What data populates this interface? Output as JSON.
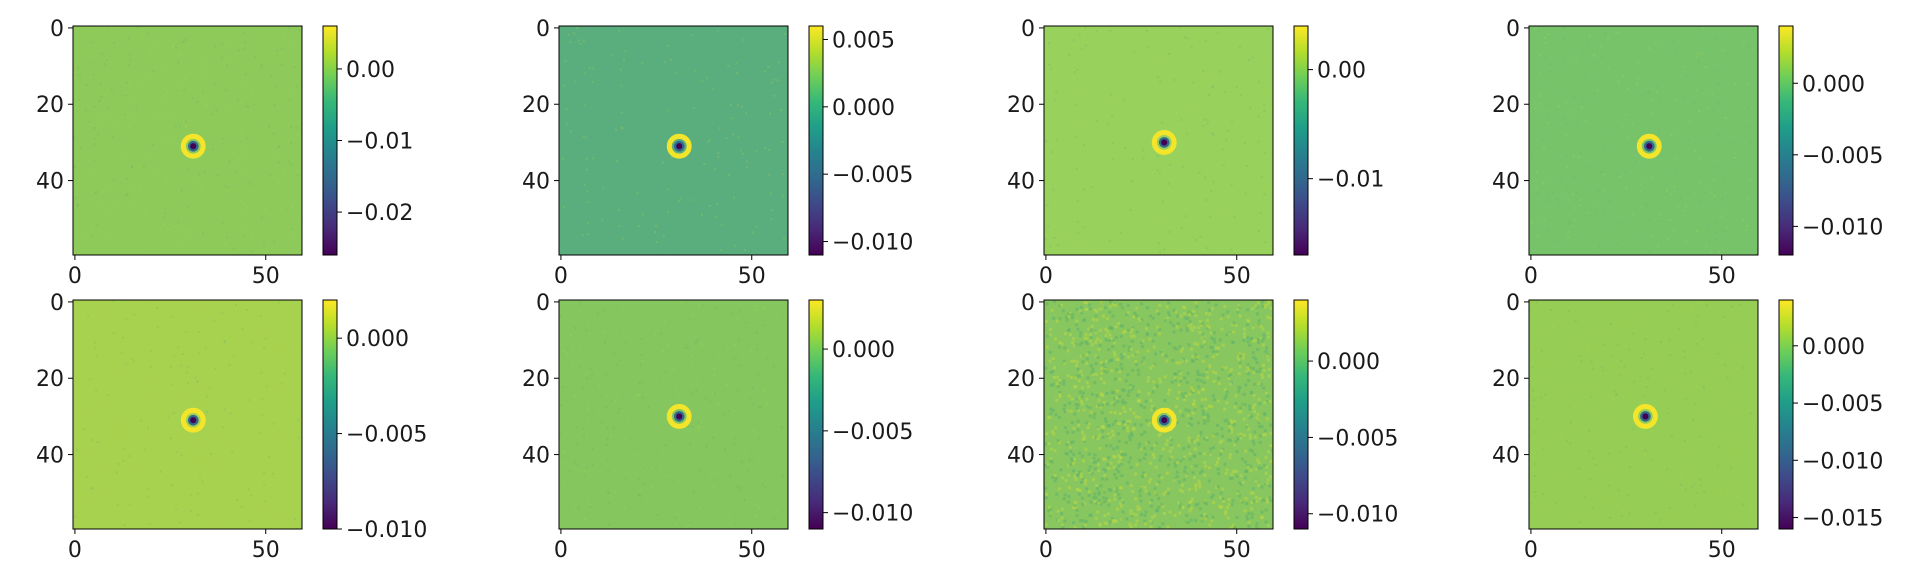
{
  "chart_data": [
    {
      "type": "heatmap",
      "image_size": [
        60,
        60
      ],
      "x_ticks": [
        0,
        50
      ],
      "y_ticks": [
        0,
        20,
        40
      ],
      "colormap": "viridis",
      "background_color": "#8dca5a",
      "center_feature": {
        "x": 31,
        "y": 31,
        "min": -0.026,
        "ring_max": 0.006
      },
      "colorbar": {
        "range": [
          -0.026,
          0.006
        ],
        "ticks": [
          0.0,
          -0.01,
          -0.02
        ],
        "tick_labels": [
          "0.00",
          "−0.01",
          "−0.02"
        ]
      }
    },
    {
      "type": "heatmap",
      "image_size": [
        60,
        60
      ],
      "x_ticks": [
        0,
        50
      ],
      "y_ticks": [
        0,
        20,
        40
      ],
      "colormap": "viridis",
      "background_color": "#5aad7d",
      "center_feature": {
        "x": 31,
        "y": 31,
        "min": -0.011,
        "ring_max": 0.006
      },
      "colorbar": {
        "range": [
          -0.011,
          0.006
        ],
        "ticks": [
          0.005,
          0.0,
          -0.005,
          -0.01
        ],
        "tick_labels": [
          "0.005",
          "0.000",
          "−0.005",
          "−0.010"
        ]
      }
    },
    {
      "type": "heatmap",
      "image_size": [
        60,
        60
      ],
      "x_ticks": [
        0,
        50
      ],
      "y_ticks": [
        0,
        20,
        40
      ],
      "colormap": "viridis",
      "background_color": "#98d15c",
      "center_feature": {
        "x": 31,
        "y": 30,
        "min": -0.017,
        "ring_max": 0.004
      },
      "colorbar": {
        "range": [
          -0.017,
          0.004
        ],
        "ticks": [
          0.0,
          -0.01
        ],
        "tick_labels": [
          "0.00",
          "−0.01"
        ]
      }
    },
    {
      "type": "heatmap",
      "image_size": [
        60,
        60
      ],
      "x_ticks": [
        0,
        50
      ],
      "y_ticks": [
        0,
        20,
        40
      ],
      "colormap": "viridis",
      "background_color": "#77c36a",
      "center_feature": {
        "x": 31,
        "y": 31,
        "min": -0.012,
        "ring_max": 0.004
      },
      "colorbar": {
        "range": [
          -0.012,
          0.004
        ],
        "ticks": [
          0.0,
          -0.005,
          -0.01
        ],
        "tick_labels": [
          "0.000",
          "−0.005",
          "−0.010"
        ]
      }
    },
    {
      "type": "heatmap",
      "image_size": [
        60,
        60
      ],
      "x_ticks": [
        0,
        50
      ],
      "y_ticks": [
        0,
        20,
        40
      ],
      "colormap": "viridis",
      "background_color": "#a7d24f",
      "center_feature": {
        "x": 31,
        "y": 31,
        "min": -0.01,
        "ring_max": 0.002
      },
      "colorbar": {
        "range": [
          -0.01,
          0.002
        ],
        "ticks": [
          0.0,
          -0.005,
          -0.01
        ],
        "tick_labels": [
          "0.000",
          "−0.005",
          "−0.010"
        ]
      }
    },
    {
      "type": "heatmap",
      "image_size": [
        60,
        60
      ],
      "x_ticks": [
        0,
        50
      ],
      "y_ticks": [
        0,
        20,
        40
      ],
      "colormap": "viridis",
      "background_color": "#85c65e",
      "center_feature": {
        "x": 31,
        "y": 30,
        "min": -0.011,
        "ring_max": 0.003
      },
      "colorbar": {
        "range": [
          -0.011,
          0.003
        ],
        "ticks": [
          0.0,
          -0.005,
          -0.01
        ],
        "tick_labels": [
          "0.000",
          "−0.005",
          "−0.010"
        ]
      }
    },
    {
      "type": "heatmap",
      "image_size": [
        60,
        60
      ],
      "x_ticks": [
        0,
        50
      ],
      "y_ticks": [
        0,
        20,
        40
      ],
      "colormap": "viridis",
      "background_color": "#88c65f",
      "center_feature": {
        "x": 31,
        "y": 31,
        "min": -0.011,
        "ring_max": 0.002
      },
      "colorbar": {
        "range": [
          -0.011,
          0.004
        ],
        "ticks": [
          0.0,
          -0.005,
          -0.01
        ],
        "tick_labels": [
          "0.000",
          "−0.005",
          "−0.010"
        ]
      }
    },
    {
      "type": "heatmap",
      "image_size": [
        60,
        60
      ],
      "x_ticks": [
        0,
        50
      ],
      "y_ticks": [
        0,
        20,
        40
      ],
      "colormap": "viridis",
      "background_color": "#96cd55",
      "center_feature": {
        "x": 30,
        "y": 30,
        "min": -0.016,
        "ring_max": 0.004
      },
      "colorbar": {
        "range": [
          -0.016,
          0.004
        ],
        "ticks": [
          0.0,
          -0.005,
          -0.01,
          -0.015
        ],
        "tick_labels": [
          "0.000",
          "−0.005",
          "−0.010",
          "−0.015"
        ]
      }
    }
  ]
}
